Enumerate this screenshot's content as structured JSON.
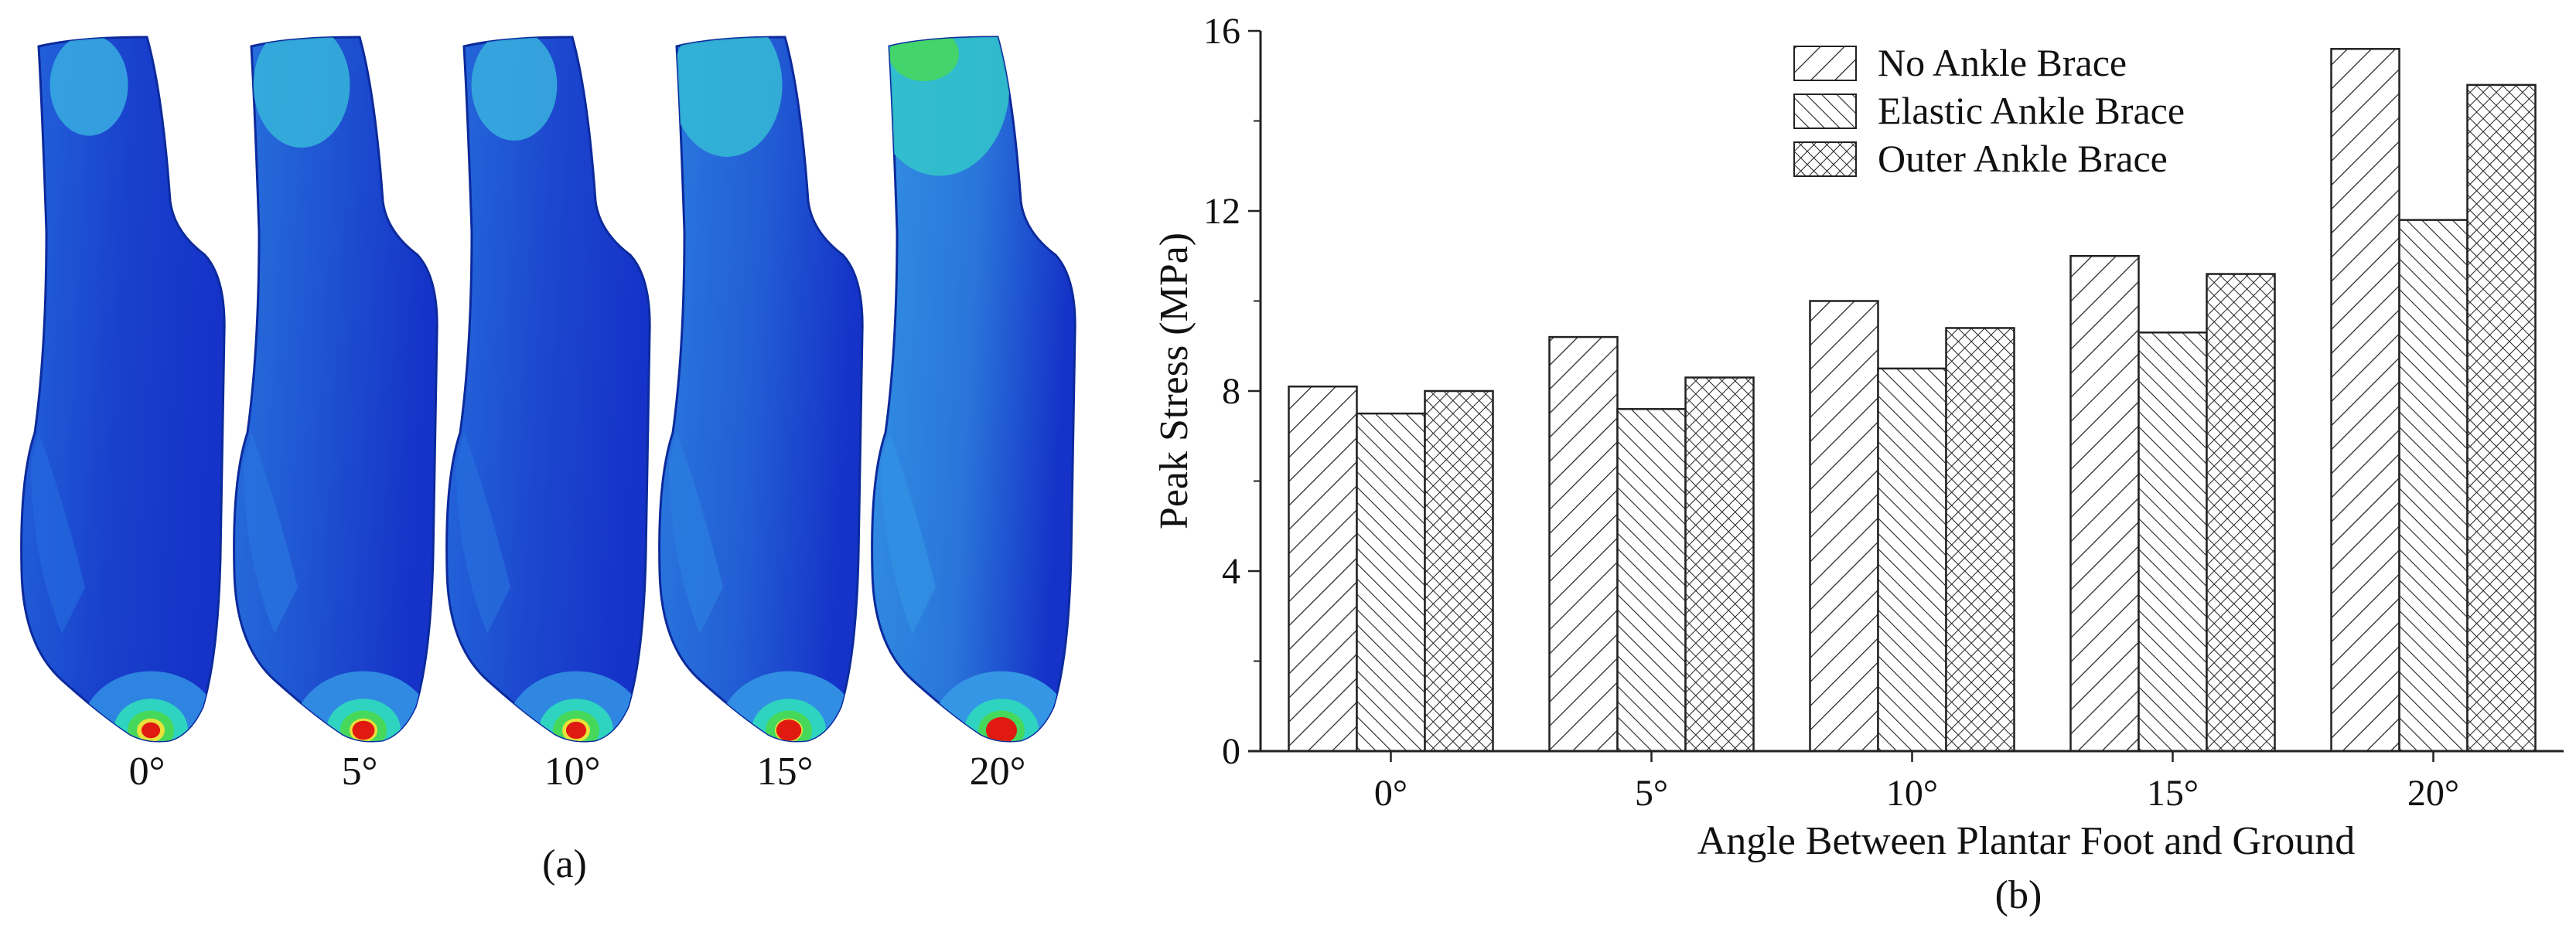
{
  "panel_a": {
    "models": [
      {
        "angle": "0°",
        "level": 0.15
      },
      {
        "angle": "5°",
        "level": 0.32
      },
      {
        "angle": "10°",
        "level": 0.22
      },
      {
        "angle": "15°",
        "level": 0.45
      },
      {
        "angle": "20°",
        "level": 0.72
      }
    ],
    "caption": "(a)",
    "colors": {
      "dark": "#1533c8",
      "mid": "#1f5ad9",
      "light": "#3aa6e8",
      "cyan": "#2fd4c0",
      "green": "#46d85a",
      "yellow": "#e8e23a",
      "red": "#e01a10"
    }
  },
  "chart_data": {
    "type": "bar",
    "title": "",
    "categories": [
      "0°",
      "5°",
      "10°",
      "15°",
      "20°"
    ],
    "series": [
      {
        "name": "No Ankle Brace",
        "values": [
          8.1,
          9.2,
          10.0,
          11.0,
          15.6
        ],
        "pattern": "diagonal-right"
      },
      {
        "name": "Elastic Ankle Brace",
        "values": [
          7.5,
          7.6,
          8.5,
          9.3,
          11.8
        ],
        "pattern": "diagonal-left"
      },
      {
        "name": "Outer Ankle Brace",
        "values": [
          8.0,
          8.3,
          9.4,
          10.6,
          14.8
        ],
        "pattern": "crosshatch"
      }
    ],
    "xlabel": "Angle Between Plantar Foot and Ground",
    "ylabel": "Peak Stress (MPa)",
    "ylim": [
      0,
      16
    ],
    "yticks": [
      "0",
      "4",
      "8",
      "12",
      "16"
    ],
    "grid": false,
    "legend": "top-right",
    "caption": "(b)"
  }
}
